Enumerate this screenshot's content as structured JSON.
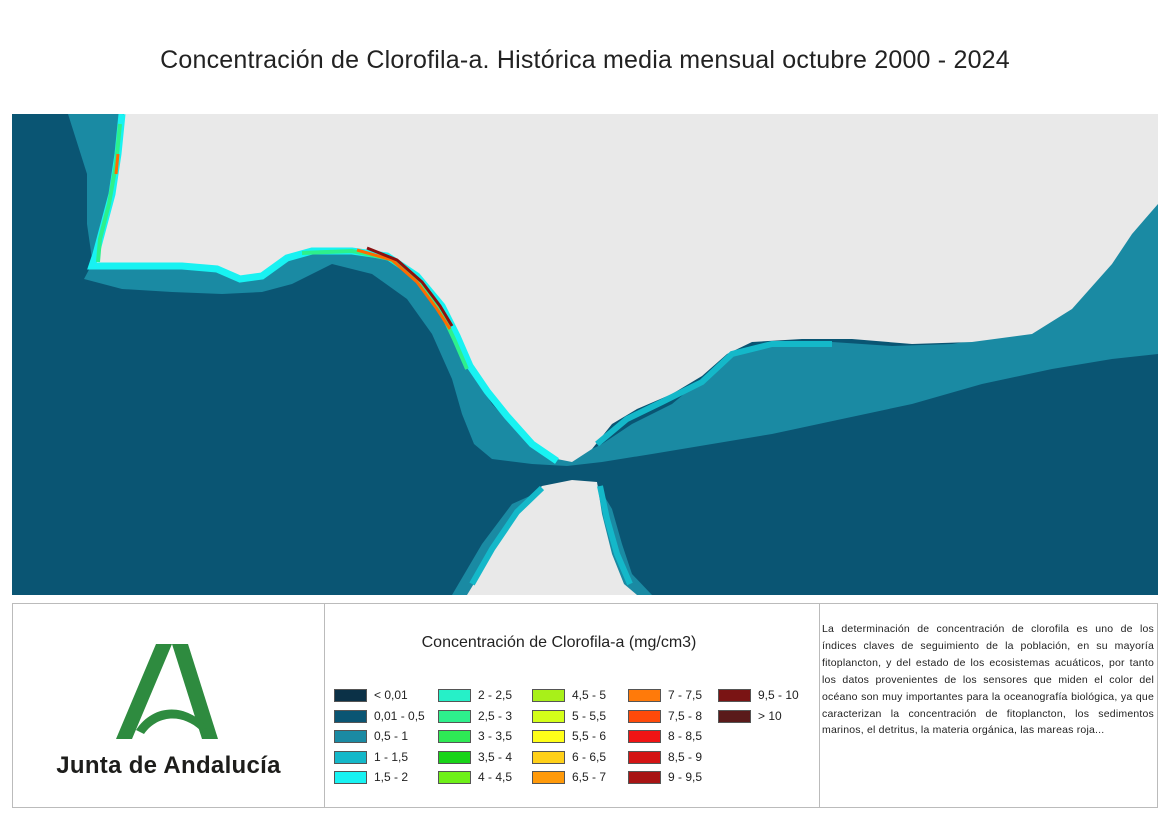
{
  "title": "Concentración de Clorofila-a. Histórica media mensual octubre 2000 - 2024",
  "map": {
    "colors": {
      "sea": "#0a5573",
      "land": "#e9e9e9",
      "shelf": "#1a8aa3",
      "coast_1": "#14b8c9",
      "coast_2": "#26f0ee",
      "coast_3": "#2ef08c",
      "coast_4": "#ccff33",
      "coast_5": "#ff6a00",
      "coast_6": "#8b1010"
    }
  },
  "legend": {
    "title": "Concentración de Clorofila-a (mg/cm3)",
    "items": [
      {
        "label": "< 0,01",
        "color": "#0b3147"
      },
      {
        "label": "0,01 - 0,5",
        "color": "#0a5573"
      },
      {
        "label": "0,5 - 1",
        "color": "#1a8aa3"
      },
      {
        "label": "1 - 1,5",
        "color": "#14b8c9"
      },
      {
        "label": "1,5 - 2",
        "color": "#18f2f2"
      },
      {
        "label": "2 - 2,5",
        "color": "#26f0c8"
      },
      {
        "label": "2,5 - 3",
        "color": "#2ef08c"
      },
      {
        "label": "3 - 3,5",
        "color": "#2eea55"
      },
      {
        "label": "3,5 - 4",
        "color": "#19d419"
      },
      {
        "label": "4 - 4,5",
        "color": "#6ef019"
      },
      {
        "label": "4,5 - 5",
        "color": "#a8f019"
      },
      {
        "label": "5 - 5,5",
        "color": "#d4ff19"
      },
      {
        "label": "5,5 - 6",
        "color": "#ffff19"
      },
      {
        "label": "6 - 6,5",
        "color": "#ffd019"
      },
      {
        "label": "6,5 - 7",
        "color": "#ff9a0a"
      },
      {
        "label": "7 - 7,5",
        "color": "#ff7a0a"
      },
      {
        "label": "7,5 - 8",
        "color": "#ff4a0a"
      },
      {
        "label": "8 - 8,5",
        "color": "#f01414"
      },
      {
        "label": "8,5 - 9",
        "color": "#d41414"
      },
      {
        "label": "9 - 9,5",
        "color": "#a81414"
      },
      {
        "label": "9,5 - 10",
        "color": "#7a1414"
      },
      {
        "label": "> 10",
        "color": "#5a1a1a"
      }
    ]
  },
  "logo": {
    "text": "Junta de Andalucía",
    "color": "#2e8b3f"
  },
  "description": "La determinación de concentración de clorofila es uno de los índices claves de seguimiento de la población, en su mayoría fitoplancton, y del estado de los ecosistemas acuáticos, por tanto los datos provenientes de los sensores que miden el color del océano son muy importantes para la oceanografía biológica, ya que caracterizan la concentración de fitoplancton, los sedimentos marinos, el detritus, la materia orgánica, las mareas roja..."
}
